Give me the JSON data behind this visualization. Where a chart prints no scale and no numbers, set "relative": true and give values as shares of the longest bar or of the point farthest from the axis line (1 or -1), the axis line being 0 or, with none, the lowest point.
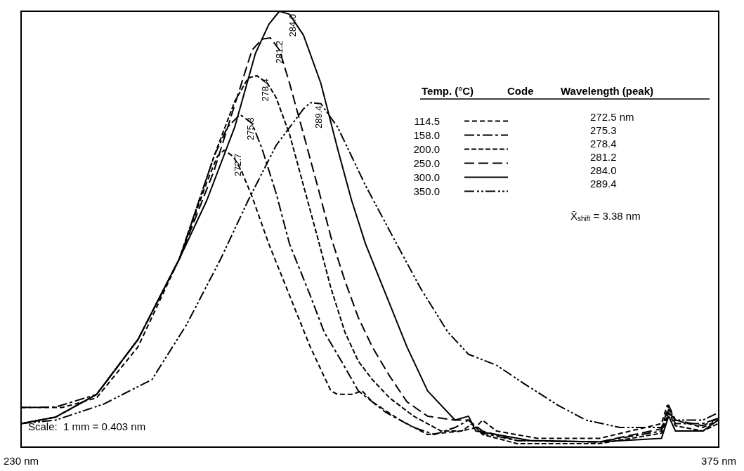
{
  "chart_data": {
    "type": "line",
    "relative": true,
    "legend": "top right",
    "legend_title": "Temp. (°C)",
    "marker": "none",
    "grid": false,
    "xlim": [
      230,
      375
    ],
    "xticks": [
      {
        "value": 230,
        "label": "230 nm"
      },
      {
        "value": 375,
        "label": "375 nm"
      }
    ],
    "series": [
      {
        "name": "114.5",
        "color": "#000000",
        "line_style": "dashed",
        "x": [
          230.0,
          238.6,
          245.7,
          254.3,
          262.9,
          268.6,
          270.8,
          272.2,
          274.1,
          275.8,
          278.0,
          281.5,
          285.8,
          290.1,
          294.4,
          295.8,
          298.7,
          300.9,
          303.0,
          308.8,
          314.5,
          321.6,
          324.5,
          325.9,
          328.8,
          337.4,
          350.2,
          363.1,
          364.3,
          366.0,
          371.7,
          374.9
        ],
        "values": [
          0.091,
          0.091,
          0.113,
          0.23,
          0.432,
          0.608,
          0.667,
          0.681,
          0.667,
          0.634,
          0.575,
          0.466,
          0.348,
          0.23,
          0.129,
          0.121,
          0.121,
          0.129,
          0.104,
          0.062,
          0.029,
          0.037,
          0.045,
          0.062,
          0.037,
          0.02,
          0.02,
          0.054,
          0.096,
          0.062,
          0.045,
          0.062
        ]
      },
      {
        "name": "158.0",
        "color": "#000000",
        "line_style": "dashed",
        "x": [
          230.0,
          237.2,
          245.7,
          254.3,
          262.9,
          270.1,
          272.9,
          275.5,
          278.0,
          280.1,
          283.0,
          285.8,
          290.1,
          293.0,
          296.6,
          300.1,
          305.9,
          311.6,
          315.9,
          320.2,
          323.0,
          325.9,
          333.1,
          350.2,
          363.1,
          364.6,
          366.0,
          371.7,
          374.9
        ],
        "values": [
          0.091,
          0.092,
          0.121,
          0.247,
          0.432,
          0.667,
          0.734,
          0.763,
          0.743,
          0.684,
          0.583,
          0.466,
          0.348,
          0.264,
          0.197,
          0.129,
          0.079,
          0.045,
          0.029,
          0.045,
          0.062,
          0.032,
          0.015,
          0.012,
          0.037,
          0.087,
          0.054,
          0.054,
          0.066
        ]
      },
      {
        "name": "200.0",
        "color": "#000000",
        "line_style": "dashed",
        "x": [
          230.0,
          237.2,
          245.7,
          254.3,
          262.9,
          270.1,
          274.4,
          277.2,
          279.0,
          281.2,
          283.0,
          285.8,
          288.7,
          291.6,
          294.4,
          297.3,
          300.1,
          303.0,
          306.6,
          311.6,
          317.3,
          321.6,
          323.8,
          325.9,
          333.1,
          350.2,
          363.1,
          364.6,
          366.0,
          371.7,
          374.9
        ],
        "values": [
          0.054,
          0.069,
          0.121,
          0.247,
          0.432,
          0.667,
          0.793,
          0.847,
          0.852,
          0.835,
          0.802,
          0.718,
          0.6,
          0.482,
          0.365,
          0.264,
          0.197,
          0.155,
          0.113,
          0.071,
          0.037,
          0.037,
          0.054,
          0.029,
          0.008,
          0.008,
          0.032,
          0.079,
          0.049,
          0.037,
          0.054
        ]
      },
      {
        "name": "250.0",
        "color": "#000000",
        "line_style": "dashed",
        "x": [
          230.0,
          237.2,
          245.7,
          254.3,
          262.9,
          270.1,
          274.4,
          278.0,
          280.1,
          281.8,
          283.7,
          285.8,
          288.7,
          291.6,
          294.4,
          297.3,
          300.1,
          303.0,
          306.6,
          310.2,
          314.5,
          320.2,
          323.0,
          325.9,
          333.1,
          350.2,
          363.1,
          364.6,
          366.0,
          371.7,
          374.9
        ],
        "values": [
          0.054,
          0.069,
          0.121,
          0.247,
          0.432,
          0.634,
          0.785,
          0.911,
          0.936,
          0.939,
          0.911,
          0.835,
          0.718,
          0.6,
          0.482,
          0.382,
          0.297,
          0.23,
          0.163,
          0.104,
          0.071,
          0.062,
          0.062,
          0.037,
          0.015,
          0.012,
          0.042,
          0.096,
          0.062,
          0.049,
          0.066
        ]
      },
      {
        "name": "300.0",
        "color": "#000000",
        "line_style": "solid",
        "x": [
          230.0,
          237.2,
          245.7,
          254.3,
          262.9,
          268.6,
          274.4,
          278.7,
          281.5,
          283.7,
          285.8,
          288.7,
          292.3,
          295.8,
          298.7,
          301.6,
          305.9,
          310.2,
          314.5,
          320.2,
          323.0,
          324.5,
          328.8,
          335.9,
          350.2,
          363.1,
          364.6,
          366.0,
          371.7,
          374.9
        ],
        "values": [
          0.054,
          0.069,
          0.121,
          0.247,
          0.432,
          0.566,
          0.734,
          0.903,
          0.97,
          1.0,
          0.993,
          0.945,
          0.835,
          0.684,
          0.566,
          0.466,
          0.348,
          0.23,
          0.129,
          0.062,
          0.071,
          0.037,
          0.029,
          0.015,
          0.012,
          0.02,
          0.071,
          0.037,
          0.037,
          0.062
        ]
      },
      {
        "name": "350.0",
        "color": "#000000",
        "line_style": "dashed",
        "x": [
          230.0,
          237.2,
          247.2,
          257.2,
          264.4,
          271.5,
          277.2,
          283.0,
          288.7,
          290.1,
          292.3,
          295.8,
          298.7,
          301.6,
          307.3,
          313.0,
          318.7,
          323.0,
          328.8,
          334.5,
          341.6,
          347.4,
          354.5,
          363.1,
          364.6,
          366.0,
          371.7,
          374.9
        ],
        "values": [
          0.054,
          0.062,
          0.099,
          0.155,
          0.281,
          0.432,
          0.566,
          0.692,
          0.776,
          0.79,
          0.788,
          0.734,
          0.667,
          0.6,
          0.482,
          0.365,
          0.264,
          0.213,
          0.188,
          0.146,
          0.096,
          0.062,
          0.045,
          0.045,
          0.079,
          0.062,
          0.062,
          0.079
        ]
      }
    ],
    "annotations": [
      "Code",
      "Wavelength (peak)",
      "272.5 nm",
      "275.3",
      "278.4",
      "281.2",
      "284.0",
      "289.4",
      "X̄$_{shift}$ = 3.38 nm",
      "Scale:  1 mm = 0.403 nm",
      {
        "text": "272.7",
        "x": 272.7,
        "y": 0.68
      },
      {
        "text": "275.3",
        "x": 275.3,
        "y": 0.763
      },
      {
        "text": "278.4",
        "x": 278.4,
        "y": 0.852
      },
      {
        "text": "281.2",
        "x": 281.2,
        "y": 0.939
      },
      {
        "text": "284.0",
        "x": 284.0,
        "y": 1.0
      },
      {
        "text": "289.4",
        "x": 289.4,
        "y": 0.79
      }
    ]
  }
}
